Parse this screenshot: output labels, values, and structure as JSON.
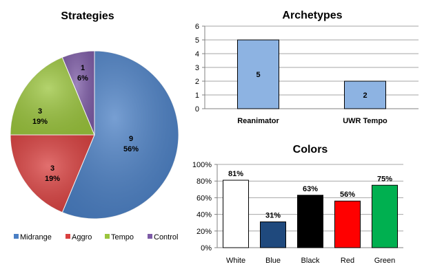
{
  "chart_data": [
    {
      "type": "pie",
      "title": "Strategies",
      "slices": [
        {
          "name": "Midrange",
          "value": 9,
          "percent": "56%",
          "color": "#4a7fc4"
        },
        {
          "name": "Aggro",
          "value": 3,
          "percent": "19%",
          "color": "#d9403f"
        },
        {
          "name": "Tempo",
          "value": 3,
          "percent": "19%",
          "color": "#9bc53d"
        },
        {
          "name": "Control",
          "value": 1,
          "percent": "6%",
          "color": "#7d5ba6"
        }
      ],
      "legend_position": "bottom"
    },
    {
      "type": "bar",
      "title": "Archetypes",
      "categories": [
        "Reanimator",
        "UWR Tempo"
      ],
      "values": [
        5,
        2
      ],
      "data_labels": [
        "5",
        "2"
      ],
      "ylim": [
        0,
        6
      ],
      "yticks": [
        "0",
        "1",
        "2",
        "3",
        "4",
        "5",
        "6"
      ],
      "color": "#8db3e2",
      "grid": true
    },
    {
      "type": "bar",
      "title": "Colors",
      "categories": [
        "White",
        "Blue",
        "Black",
        "Red",
        "Green"
      ],
      "values": [
        81,
        31,
        63,
        56,
        75
      ],
      "data_labels": [
        "81%",
        "31%",
        "63%",
        "56%",
        "75%"
      ],
      "colors": [
        "#ffffff",
        "#1f497d",
        "#000000",
        "#ff0000",
        "#00b050"
      ],
      "ylim": [
        0,
        100
      ],
      "yticks": [
        "0%",
        "20%",
        "40%",
        "60%",
        "80%",
        "100%"
      ],
      "grid": true
    }
  ]
}
